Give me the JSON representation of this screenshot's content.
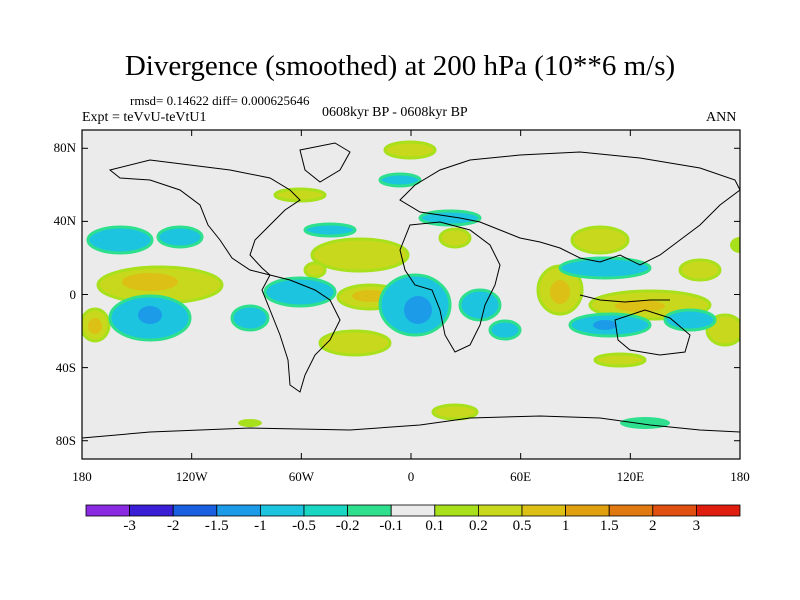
{
  "title": "Divergence (smoothed) at 200 hPa (10**6 m/s)",
  "stats": "rmsd= 0.14622 diff= 0.000625646",
  "experiment": "Expt = teVvU-teVtU1",
  "period": "0608kyr BP - 0608kyr BP",
  "season": "ANN",
  "map": {
    "lat_range": [
      -90,
      90
    ],
    "lon_range": [
      -180,
      180
    ],
    "lat_ticks": [
      {
        "value": 80,
        "label": "80N"
      },
      {
        "value": 40,
        "label": "40N"
      },
      {
        "value": 0,
        "label": "0"
      },
      {
        "value": -40,
        "label": "40S"
      },
      {
        "value": -80,
        "label": "80S"
      }
    ],
    "lon_ticks": [
      {
        "value": -180,
        "label": "180"
      },
      {
        "value": -120,
        "label": "120W"
      },
      {
        "value": -60,
        "label": "60W"
      },
      {
        "value": 0,
        "label": "0"
      },
      {
        "value": 60,
        "label": "60E"
      },
      {
        "value": 120,
        "label": "120E"
      },
      {
        "value": 180,
        "label": "180"
      }
    ],
    "background_color": "#ebebeb",
    "coastline_color": "#000000"
  },
  "colorbar": {
    "colors": [
      "#8a2be2",
      "#3a1fd6",
      "#1a5fe0",
      "#1c9be8",
      "#1cc4e0",
      "#19d7c2",
      "#2ee08e",
      "#ebebeb",
      "#a8e01c",
      "#c8d81c",
      "#dcc016",
      "#e0a010",
      "#e07a10",
      "#e05010",
      "#e01e10"
    ],
    "labels": [
      "-3",
      "-2",
      "-1.5",
      "-1",
      "-0.5",
      "-0.2",
      "-0.1",
      "0.1",
      "0.2",
      "0.5",
      "1",
      "1.5",
      "2",
      "3"
    ]
  }
}
